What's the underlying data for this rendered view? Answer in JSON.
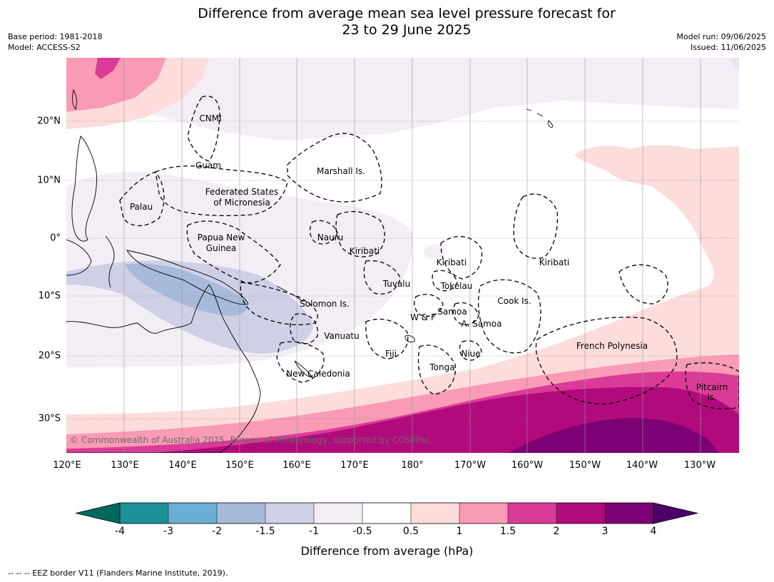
{
  "title": {
    "line1": "Difference from average mean sea level pressure forecast for",
    "line2": "23 to 29 June 2025"
  },
  "meta": {
    "base_period": "Base period: 1981-2018",
    "model": "Model: ACCESS-S2",
    "model_run": "Model run: 09/06/2025",
    "issued": "Issued: 11/06/2025"
  },
  "map": {
    "lon_labels": [
      "120°E",
      "130°E",
      "140°E",
      "150°E",
      "160°E",
      "170°E",
      "180°",
      "170°W",
      "160°W",
      "150°W",
      "140°W",
      "130°W"
    ],
    "lat_labels": [
      "20°N",
      "10°N",
      "0°",
      "10°S",
      "20°S",
      "30°S"
    ],
    "regions": {
      "cnmi": "CNMI",
      "guam": "Guam",
      "marshall": "Marshall Is.",
      "fsm_1": "Federated States",
      "fsm_2": "of Micronesia",
      "palau": "Palau",
      "png_1": "Papua New",
      "png_2": "Guinea",
      "nauru": "Nauru",
      "kiribati_w": "Kiribati",
      "kiribati_c": "Kiribati",
      "kiribati_e": "Kiribati",
      "tuvalu": "Tuvalu",
      "tokelau": "Tokelau",
      "cook": "Cook Is.",
      "solomon": "Solomon Is.",
      "samoa": "Samoa",
      "wf": "W & F",
      "asamoa": "A. Samoa",
      "vanuatu": "Vanuatu",
      "fiji": "Fiji",
      "niue": "Niue",
      "tonga": "Tonga",
      "newcal": "New Caledonia",
      "frpoly": "French Polynesia",
      "pitcairn_1": "Pitcairn",
      "pitcairn_2": "Is."
    },
    "copyright": "© Commonwealth of Australia 2025, Bureau of Meteorology, supported by COSPPac"
  },
  "colorbar": {
    "title": "Difference from average (hPa)",
    "ticks": [
      "-4",
      "-3",
      "-2",
      "-1.5",
      "-1",
      "-0.5",
      "0.5",
      "1",
      "1.5",
      "2",
      "3",
      "4"
    ],
    "colors": {
      "below_-4": "#006a5e",
      "-4_-3": "#1b9199",
      "-3_-2": "#6aaed6",
      "-2_-1.5": "#a7bad9",
      "-1.5_-1": "#cfd0e6",
      "-1_-0.5": "#f3edf5",
      "-0.5_0.5": "#ffffff",
      "0.5_1": "#fddcdc",
      "1_1.5": "#f99bb5",
      "1.5_2": "#db3b98",
      "2_3": "#b10a7c",
      "3_4": "#7d0175",
      "above_4": "#4a0068"
    }
  },
  "footnote": "--  --  -- EEZ border V11 (Flanders Marine Institute, 2019)."
}
